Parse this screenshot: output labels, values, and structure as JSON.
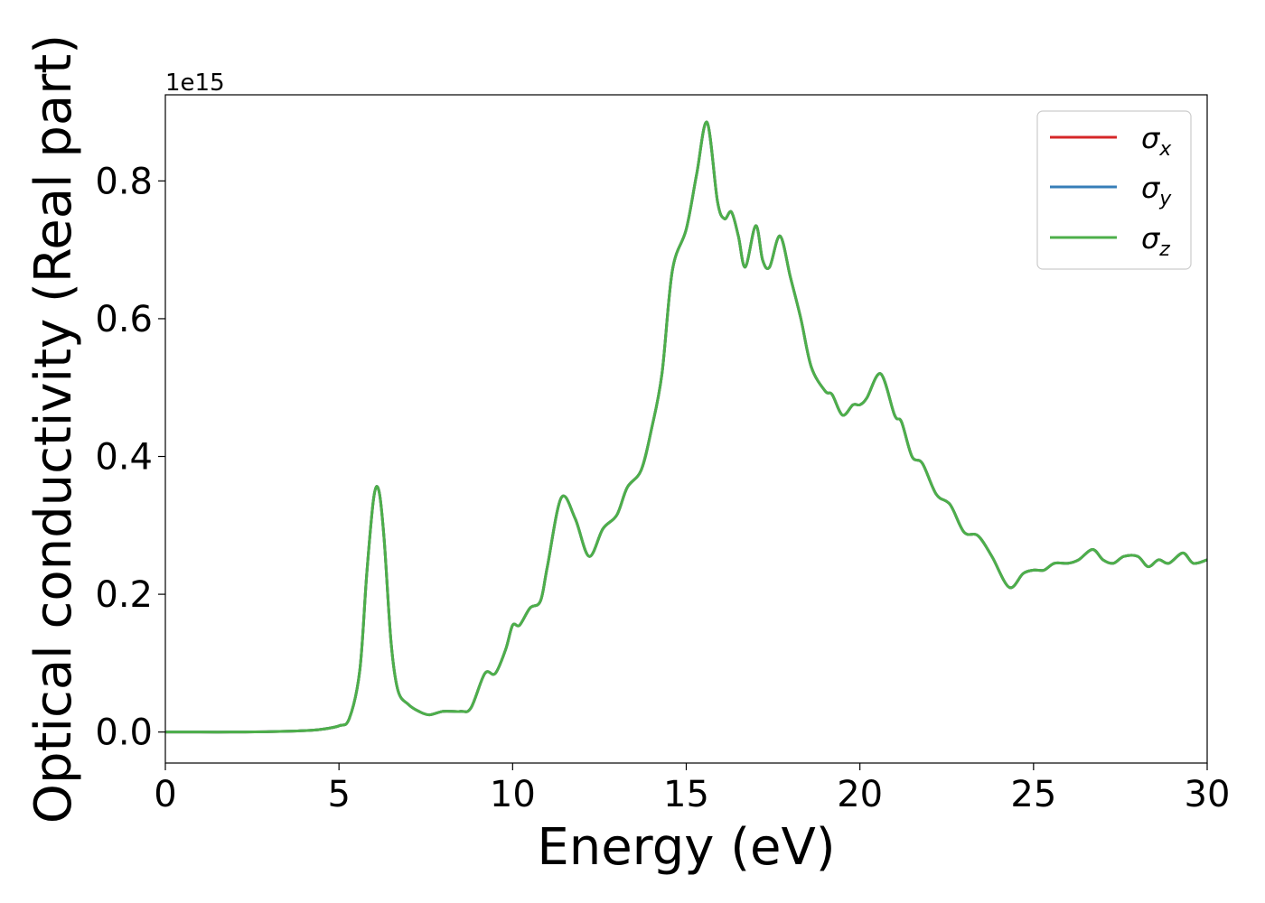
{
  "chart_data": {
    "type": "line",
    "title": "",
    "xlabel": "Energy (eV)",
    "ylabel": "Optical conductivity (Real part)",
    "y_offset_label": "1e15",
    "xlim": [
      0,
      30
    ],
    "ylim": [
      -0.045,
      0.925
    ],
    "x_ticks": [
      0,
      5,
      10,
      15,
      20,
      25,
      30
    ],
    "x_tick_labels": [
      "0",
      "5",
      "10",
      "15",
      "20",
      "25",
      "30"
    ],
    "y_ticks": [
      0.0,
      0.2,
      0.4,
      0.6,
      0.8
    ],
    "y_tick_labels": [
      "0.0",
      "0.2",
      "0.4",
      "0.6",
      "0.8"
    ],
    "grid": false,
    "legend_position": "top-right",
    "x": [
      0,
      1,
      2,
      3,
      4,
      4.5,
      5,
      5.3,
      5.6,
      5.8,
      6.0,
      6.15,
      6.3,
      6.5,
      6.7,
      7.0,
      7.3,
      7.6,
      8.0,
      8.5,
      8.8,
      9.2,
      9.5,
      9.8,
      10.0,
      10.2,
      10.5,
      10.8,
      11.0,
      11.4,
      11.8,
      12.2,
      12.6,
      13.0,
      13.3,
      13.7,
      14.0,
      14.3,
      14.6,
      15.0,
      15.3,
      15.6,
      15.9,
      16.1,
      16.3,
      16.5,
      16.7,
      17.0,
      17.2,
      17.4,
      17.7,
      18.0,
      18.3,
      18.6,
      19.0,
      19.2,
      19.5,
      19.8,
      20.0,
      20.2,
      20.6,
      21.0,
      21.2,
      21.5,
      21.8,
      22.2,
      22.6,
      23.0,
      23.4,
      23.8,
      24.3,
      24.7,
      25.0,
      25.3,
      25.6,
      26.0,
      26.3,
      26.7,
      27.0,
      27.3,
      27.6,
      28.0,
      28.3,
      28.6,
      28.9,
      29.3,
      29.6,
      30.0
    ],
    "series": [
      {
        "name": "σx",
        "symbol": "σ",
        "subscript": "x",
        "color": "#d62728",
        "values": [
          0.0,
          0.0,
          0.0,
          0.0005,
          0.002,
          0.004,
          0.009,
          0.02,
          0.09,
          0.23,
          0.34,
          0.35,
          0.28,
          0.13,
          0.06,
          0.04,
          0.03,
          0.025,
          0.03,
          0.03,
          0.035,
          0.085,
          0.085,
          0.12,
          0.155,
          0.155,
          0.18,
          0.19,
          0.24,
          0.34,
          0.31,
          0.255,
          0.295,
          0.315,
          0.355,
          0.38,
          0.44,
          0.52,
          0.67,
          0.73,
          0.81,
          0.885,
          0.77,
          0.745,
          0.755,
          0.72,
          0.675,
          0.735,
          0.685,
          0.675,
          0.72,
          0.66,
          0.6,
          0.53,
          0.495,
          0.49,
          0.46,
          0.475,
          0.475,
          0.485,
          0.52,
          0.46,
          0.45,
          0.4,
          0.39,
          0.345,
          0.33,
          0.29,
          0.285,
          0.255,
          0.21,
          0.23,
          0.235,
          0.235,
          0.245,
          0.245,
          0.25,
          0.265,
          0.25,
          0.245,
          0.255,
          0.255,
          0.24,
          0.25,
          0.245,
          0.26,
          0.245,
          0.25
        ]
      },
      {
        "name": "σy",
        "symbol": "σ",
        "subscript": "y",
        "color": "#377eb8",
        "values": [
          0.0,
          0.0,
          0.0,
          0.0005,
          0.002,
          0.004,
          0.009,
          0.02,
          0.09,
          0.23,
          0.34,
          0.35,
          0.28,
          0.13,
          0.06,
          0.04,
          0.03,
          0.025,
          0.03,
          0.03,
          0.035,
          0.085,
          0.085,
          0.12,
          0.155,
          0.155,
          0.18,
          0.19,
          0.24,
          0.34,
          0.31,
          0.255,
          0.295,
          0.315,
          0.355,
          0.38,
          0.44,
          0.52,
          0.67,
          0.73,
          0.81,
          0.885,
          0.77,
          0.745,
          0.755,
          0.72,
          0.675,
          0.735,
          0.685,
          0.675,
          0.72,
          0.66,
          0.6,
          0.53,
          0.495,
          0.49,
          0.46,
          0.475,
          0.475,
          0.485,
          0.52,
          0.46,
          0.45,
          0.4,
          0.39,
          0.345,
          0.33,
          0.29,
          0.285,
          0.255,
          0.21,
          0.23,
          0.235,
          0.235,
          0.245,
          0.245,
          0.25,
          0.265,
          0.25,
          0.245,
          0.255,
          0.255,
          0.24,
          0.25,
          0.245,
          0.26,
          0.245,
          0.25
        ]
      },
      {
        "name": "σz",
        "symbol": "σ",
        "subscript": "z",
        "color": "#4daf4a",
        "values": [
          0.0,
          0.0,
          0.0,
          0.0005,
          0.002,
          0.004,
          0.009,
          0.02,
          0.09,
          0.23,
          0.34,
          0.35,
          0.28,
          0.13,
          0.06,
          0.04,
          0.03,
          0.025,
          0.03,
          0.03,
          0.035,
          0.085,
          0.085,
          0.12,
          0.155,
          0.155,
          0.18,
          0.19,
          0.24,
          0.34,
          0.31,
          0.255,
          0.295,
          0.315,
          0.355,
          0.38,
          0.44,
          0.52,
          0.67,
          0.73,
          0.81,
          0.885,
          0.77,
          0.745,
          0.755,
          0.72,
          0.675,
          0.735,
          0.685,
          0.675,
          0.72,
          0.66,
          0.6,
          0.53,
          0.495,
          0.49,
          0.46,
          0.475,
          0.475,
          0.485,
          0.52,
          0.46,
          0.45,
          0.4,
          0.39,
          0.345,
          0.33,
          0.29,
          0.285,
          0.255,
          0.21,
          0.23,
          0.235,
          0.235,
          0.245,
          0.245,
          0.25,
          0.265,
          0.25,
          0.245,
          0.255,
          0.255,
          0.24,
          0.25,
          0.245,
          0.26,
          0.245,
          0.25
        ]
      }
    ]
  }
}
